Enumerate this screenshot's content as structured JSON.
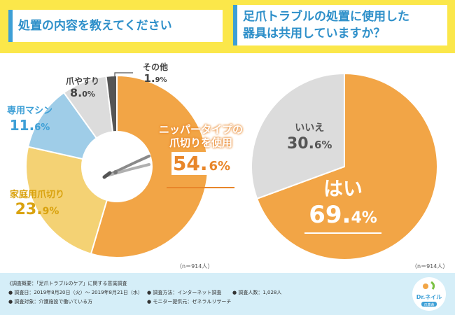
{
  "header": {
    "left_title": "処置の内容を教えてください",
    "right_title_line1": "足爪トラブルの処置に使用した",
    "right_title_line2": "器具は共用していますか？"
  },
  "chart_data": [
    {
      "type": "pie",
      "title": "処置の内容を教えてください",
      "categories": [
        "ニッパータイプの爪切りを使用",
        "家庭用爪切り",
        "専用マシン",
        "爪やすり",
        "その他"
      ],
      "values": [
        54.6,
        23.9,
        11.6,
        8.0,
        1.9
      ],
      "colors": [
        "#f2a546",
        "#f4d274",
        "#9fcde8",
        "#dcdcdc",
        "#555555"
      ],
      "note": "（n＝914人）"
    },
    {
      "type": "pie",
      "title": "足爪トラブルの処置に使用した器具は共用していますか？",
      "categories": [
        "はい",
        "いいえ"
      ],
      "values": [
        69.4,
        30.6
      ],
      "colors": [
        "#f2a546",
        "#dcdcdc"
      ],
      "note": "（n＝914人）"
    }
  ],
  "labels": {
    "nipper_line1": "ニッパータイプの",
    "nipper_line2": "爪切りを使用",
    "nipper_int": "54.",
    "nipper_dec": "6%",
    "katei_name": "家庭用爪切り",
    "katei_int": "23.",
    "katei_dec": "9%",
    "senyo_name": "専用マシン",
    "senyo_int": "11.",
    "senyo_dec": "6%",
    "yasuri_name": "爪やすり",
    "yasuri_int": "8.",
    "yasuri_dec": "0%",
    "sonota_name": "その他",
    "sonota_int": "1.",
    "sonota_dec": "9%",
    "hai_name": "はい",
    "hai_int": "69.",
    "hai_dec": "4%",
    "iie_name": "いいえ",
    "iie_int": "30.",
    "iie_dec": "6%"
  },
  "footer": {
    "line1": "《調査概要：「足爪トラブルのケア」に関する意識調査",
    "line2a": "● 調査日：2019年8月20日（火）～ 2019年8月21日（水）",
    "line2b": "● 調査方法：インターネット調査",
    "line2c": "● 調査人数：1,028人",
    "line3a": "● 調査対象：介護施設で働いている方",
    "line3b": "● モニター提供元：ゼネラルリサーチ",
    "logo_text": "Dr.ネイル",
    "logo_sub": "爪革命"
  }
}
